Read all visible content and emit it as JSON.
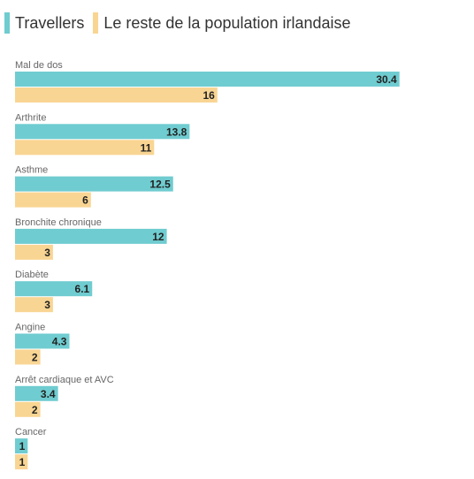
{
  "legend": {
    "items": [
      {
        "label": "Travellers",
        "color": "#6fccd0"
      },
      {
        "label": "Le reste de la population irlandaise",
        "color": "#f9d593"
      }
    ]
  },
  "chart_data": {
    "type": "bar",
    "orientation": "horizontal",
    "categories": [
      "Mal de dos",
      "Arthrite",
      "Asthme",
      "Bronchite chronique",
      "Diabète",
      "Angine",
      "Arrêt cardiaque et AVC",
      "Cancer"
    ],
    "series": [
      {
        "name": "Travellers",
        "color": "#6fccd0",
        "values": [
          30.4,
          13.8,
          12.5,
          12,
          6.1,
          4.3,
          3.4,
          1
        ]
      },
      {
        "name": "Le reste de la population irlandaise",
        "color": "#f9d593",
        "values": [
          16,
          11,
          6,
          3,
          3,
          2,
          2,
          1
        ]
      }
    ],
    "legend_position": "top-left",
    "grid": false,
    "title": "",
    "xlabel": "",
    "ylabel": ""
  }
}
